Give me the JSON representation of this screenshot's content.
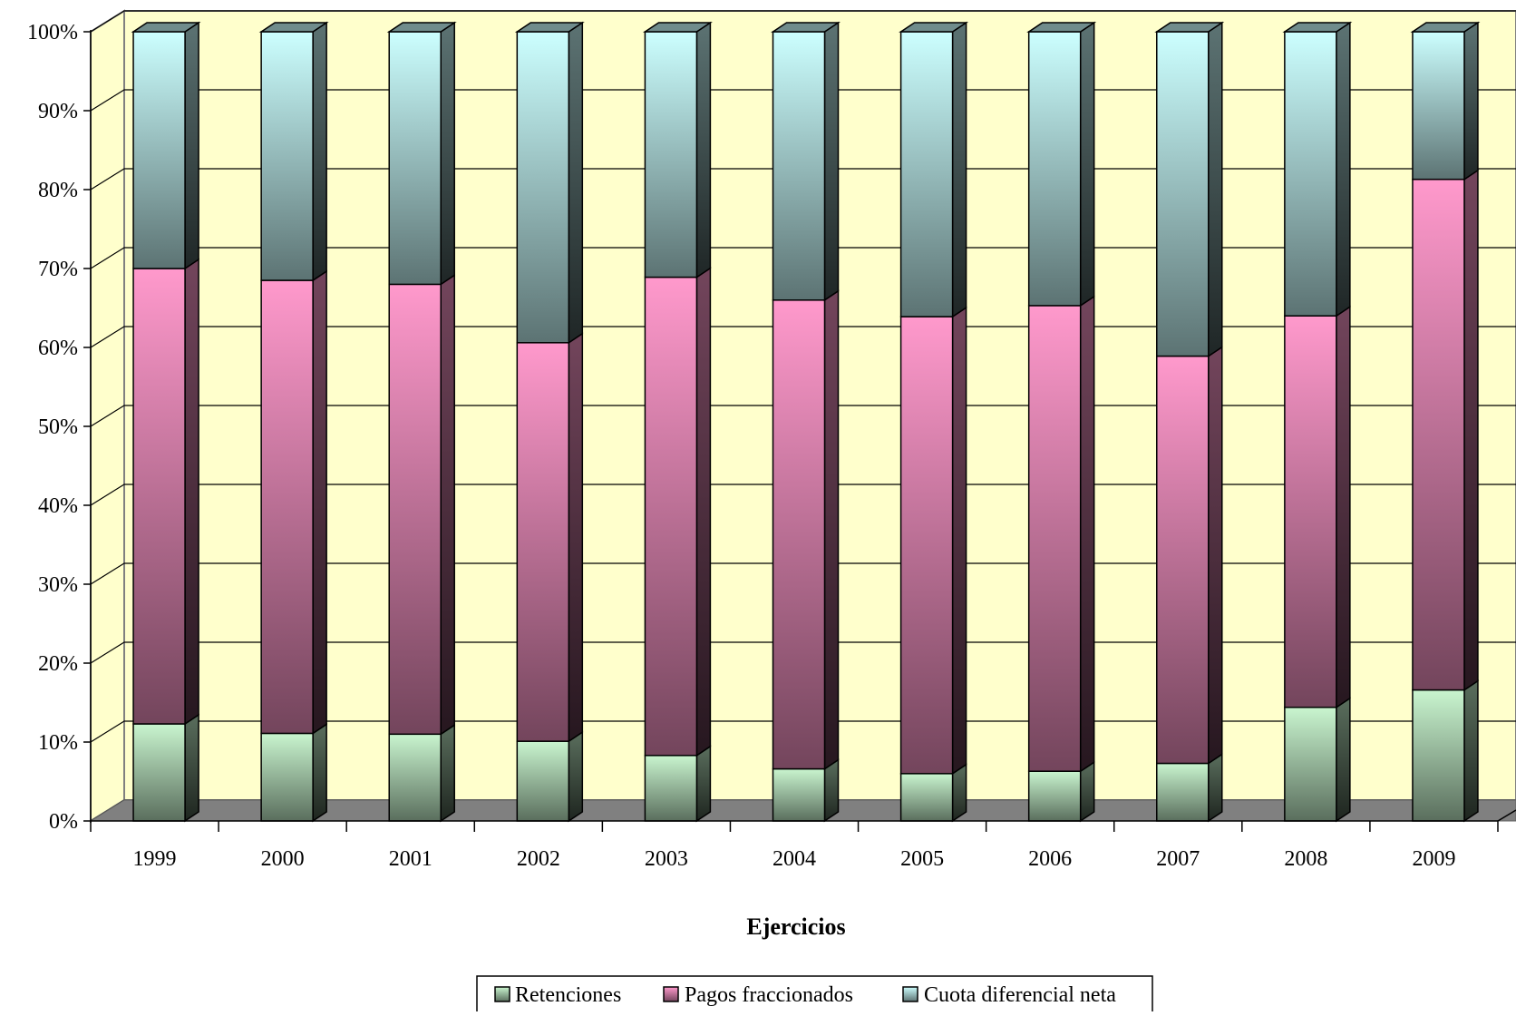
{
  "chart_data": {
    "type": "bar",
    "stacked": true,
    "percent_stacked": true,
    "three_d": true,
    "title": "",
    "xlabel": "Ejercicios",
    "ylabel": "",
    "categories": [
      "1999",
      "2000",
      "2001",
      "2002",
      "2003",
      "2004",
      "2005",
      "2006",
      "2007",
      "2008",
      "2009"
    ],
    "y_ticks": [
      "0%",
      "10%",
      "20%",
      "30%",
      "40%",
      "50%",
      "60%",
      "70%",
      "80%",
      "90%",
      "100%"
    ],
    "ylim": [
      0,
      100
    ],
    "grid": true,
    "legend_position": "bottom",
    "series": [
      {
        "name": "Retenciones",
        "color": "#c9f5cf",
        "values": [
          12.3,
          11.1,
          11.0,
          10.1,
          8.3,
          6.6,
          6.0,
          6.3,
          7.3,
          14.4,
          16.6
        ]
      },
      {
        "name": "Pagos fraccionados",
        "color": "#ff99cc",
        "values": [
          57.7,
          57.4,
          57.0,
          50.5,
          60.6,
          59.4,
          57.9,
          59.0,
          51.6,
          49.6,
          64.7
        ]
      },
      {
        "name": "Cuota diferencial neta",
        "color": "#ccffff",
        "values": [
          30.0,
          31.5,
          32.0,
          39.4,
          31.1,
          34.0,
          36.1,
          34.7,
          41.1,
          36.0,
          18.7
        ]
      }
    ],
    "colors": {
      "wall": "#ffffcc",
      "floor": "#808080",
      "gridline": "#000000"
    }
  }
}
